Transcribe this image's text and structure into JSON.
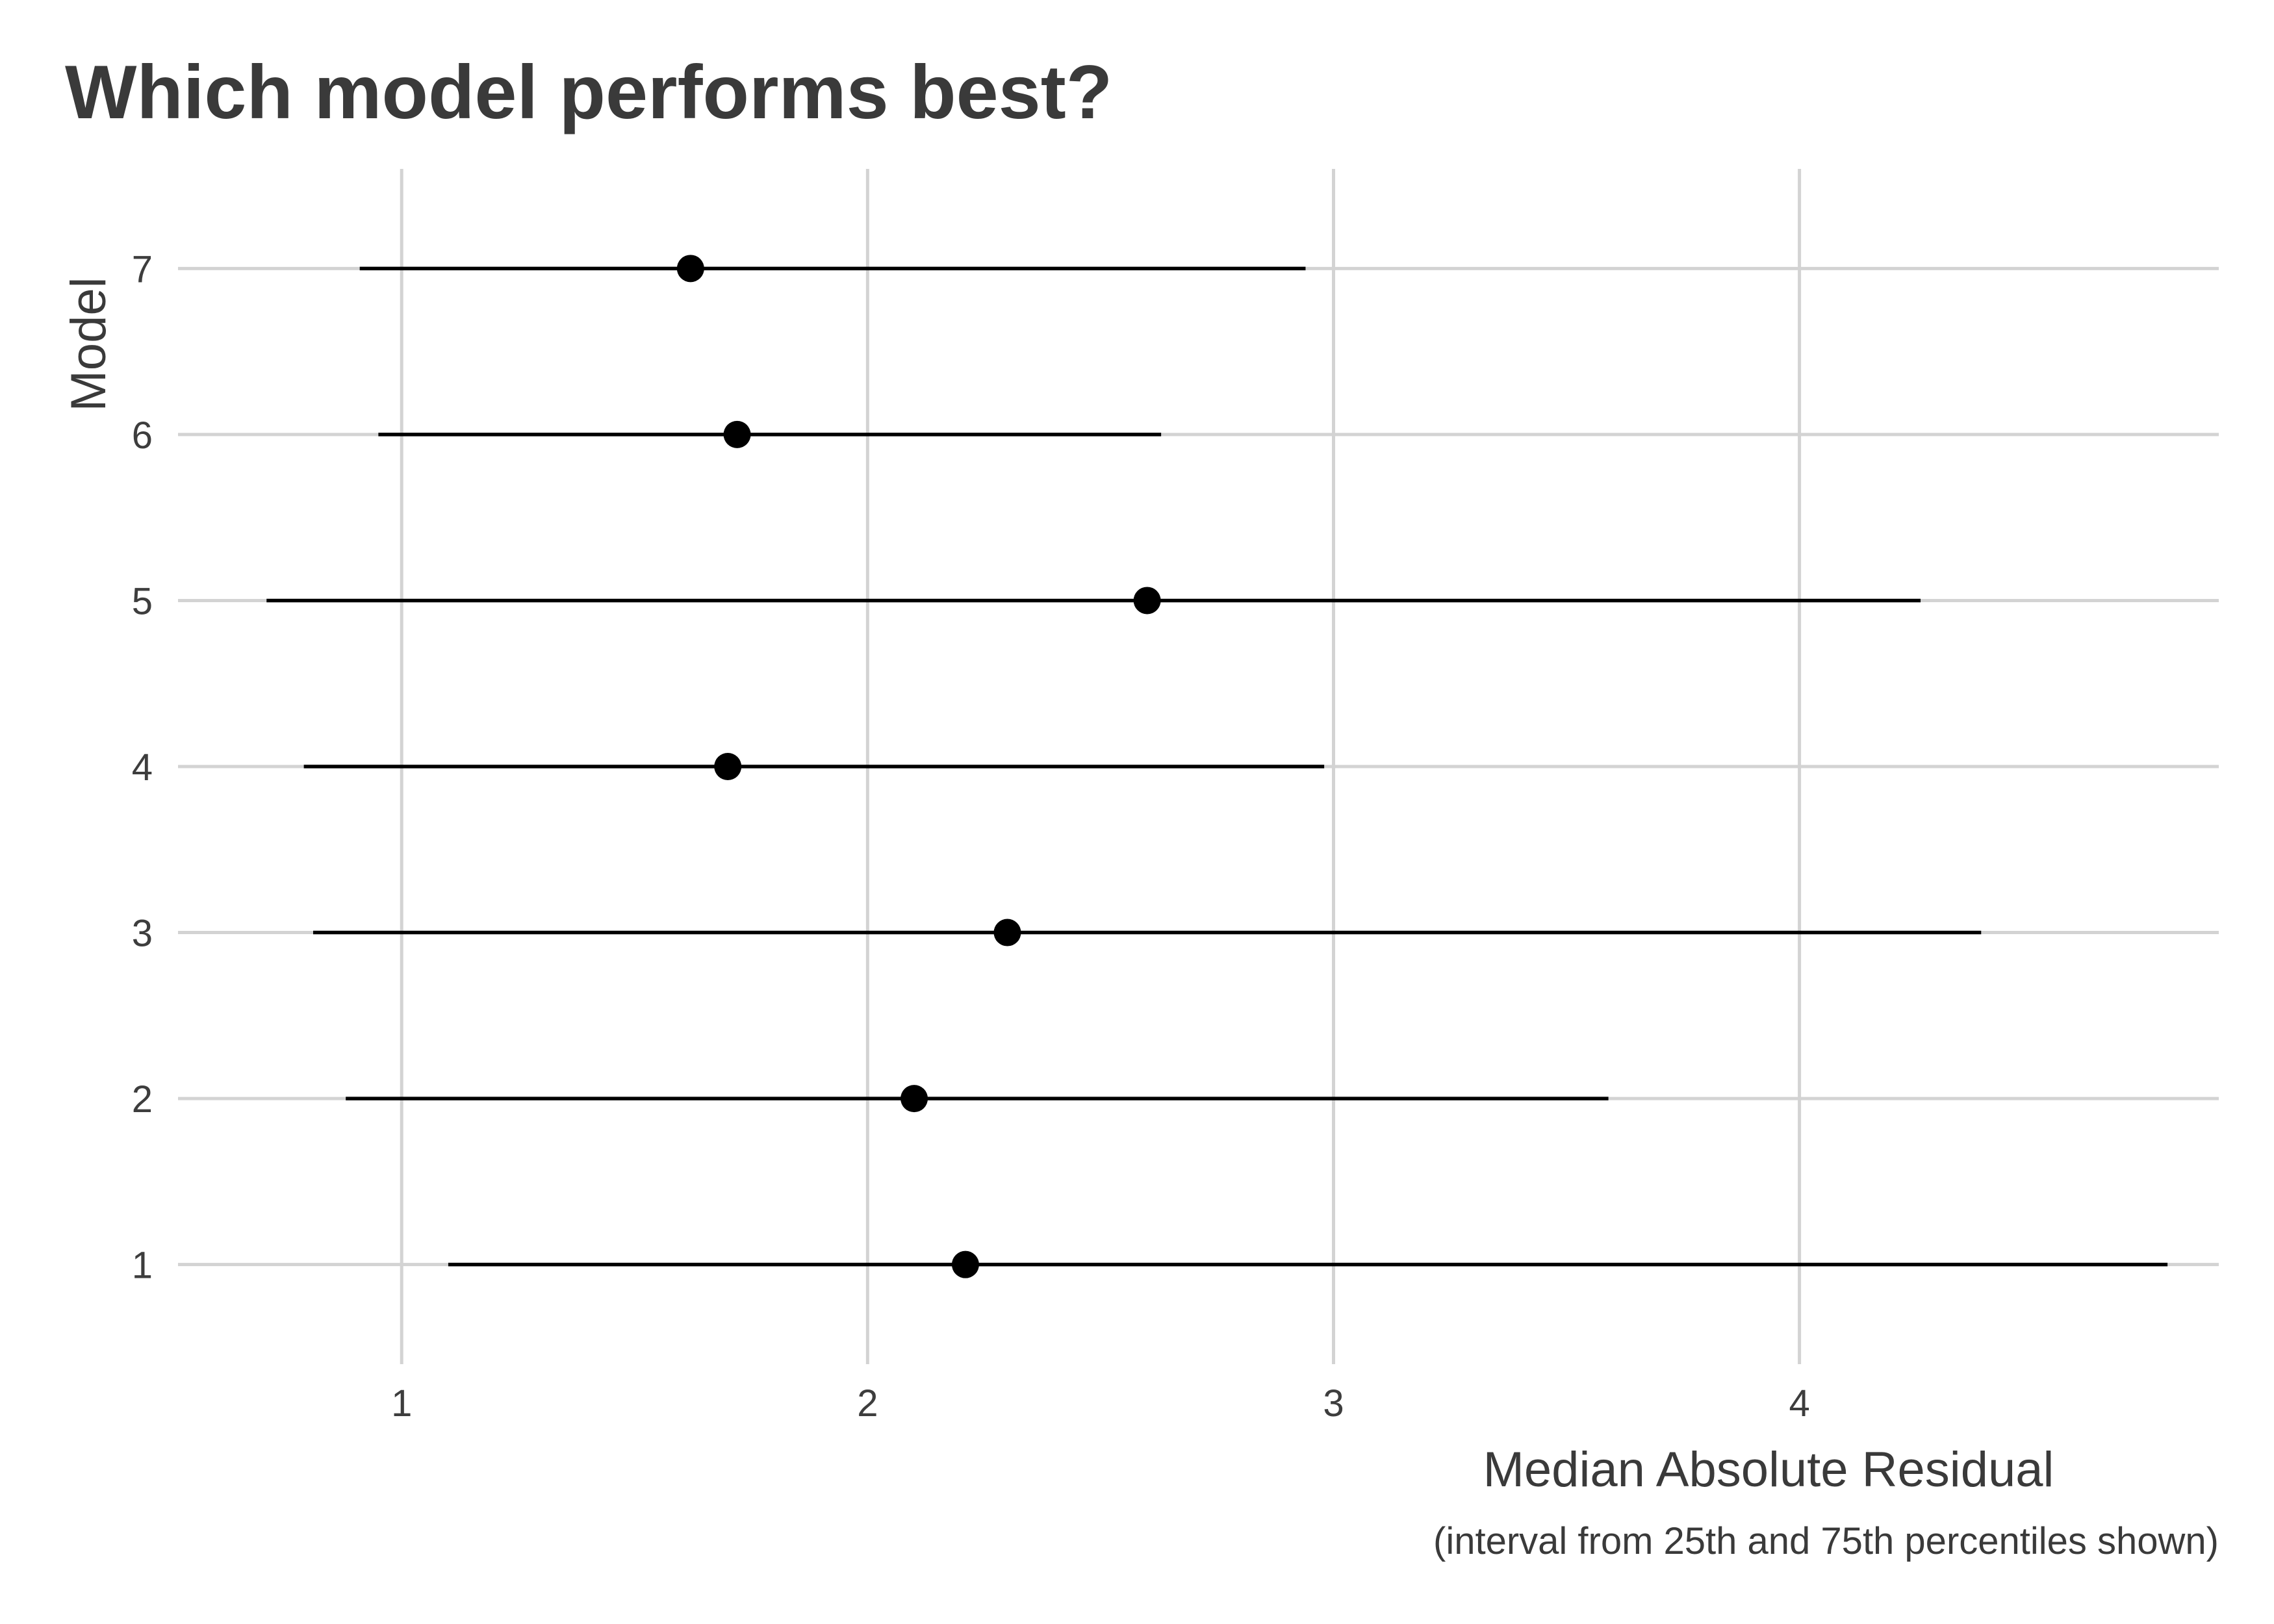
{
  "chart_data": {
    "type": "scatter",
    "title": "Which model performs best?",
    "xlabel": "Median Absolute Residual",
    "ylabel": "Model",
    "caption": "(interval from 25th and 75th percentiles shown)",
    "xlim": [
      0.52,
      4.9
    ],
    "ylim": [
      0.4,
      7.6
    ],
    "x_ticks": [
      1,
      2,
      3,
      4
    ],
    "x_tick_labels": [
      "1",
      "2",
      "3",
      "4"
    ],
    "categories": [
      "1",
      "2",
      "3",
      "4",
      "5",
      "6",
      "7"
    ],
    "points": [
      {
        "model": "1",
        "median": 2.21,
        "lower": 1.1,
        "upper": 4.79
      },
      {
        "model": "2",
        "median": 2.1,
        "lower": 0.88,
        "upper": 3.59
      },
      {
        "model": "3",
        "median": 2.3,
        "lower": 0.81,
        "upper": 4.39
      },
      {
        "model": "4",
        "median": 1.7,
        "lower": 0.79,
        "upper": 2.98
      },
      {
        "model": "5",
        "median": 2.6,
        "lower": 0.71,
        "upper": 4.26
      },
      {
        "model": "6",
        "median": 1.72,
        "lower": 0.95,
        "upper": 2.63
      },
      {
        "model": "7",
        "median": 1.62,
        "lower": 0.91,
        "upper": 2.94
      }
    ],
    "grid": true,
    "legend": "none",
    "colors": {
      "gridline": "#d3d3d3",
      "interval": "#000000",
      "point": "#000000",
      "text": "#3a3a3a"
    }
  }
}
